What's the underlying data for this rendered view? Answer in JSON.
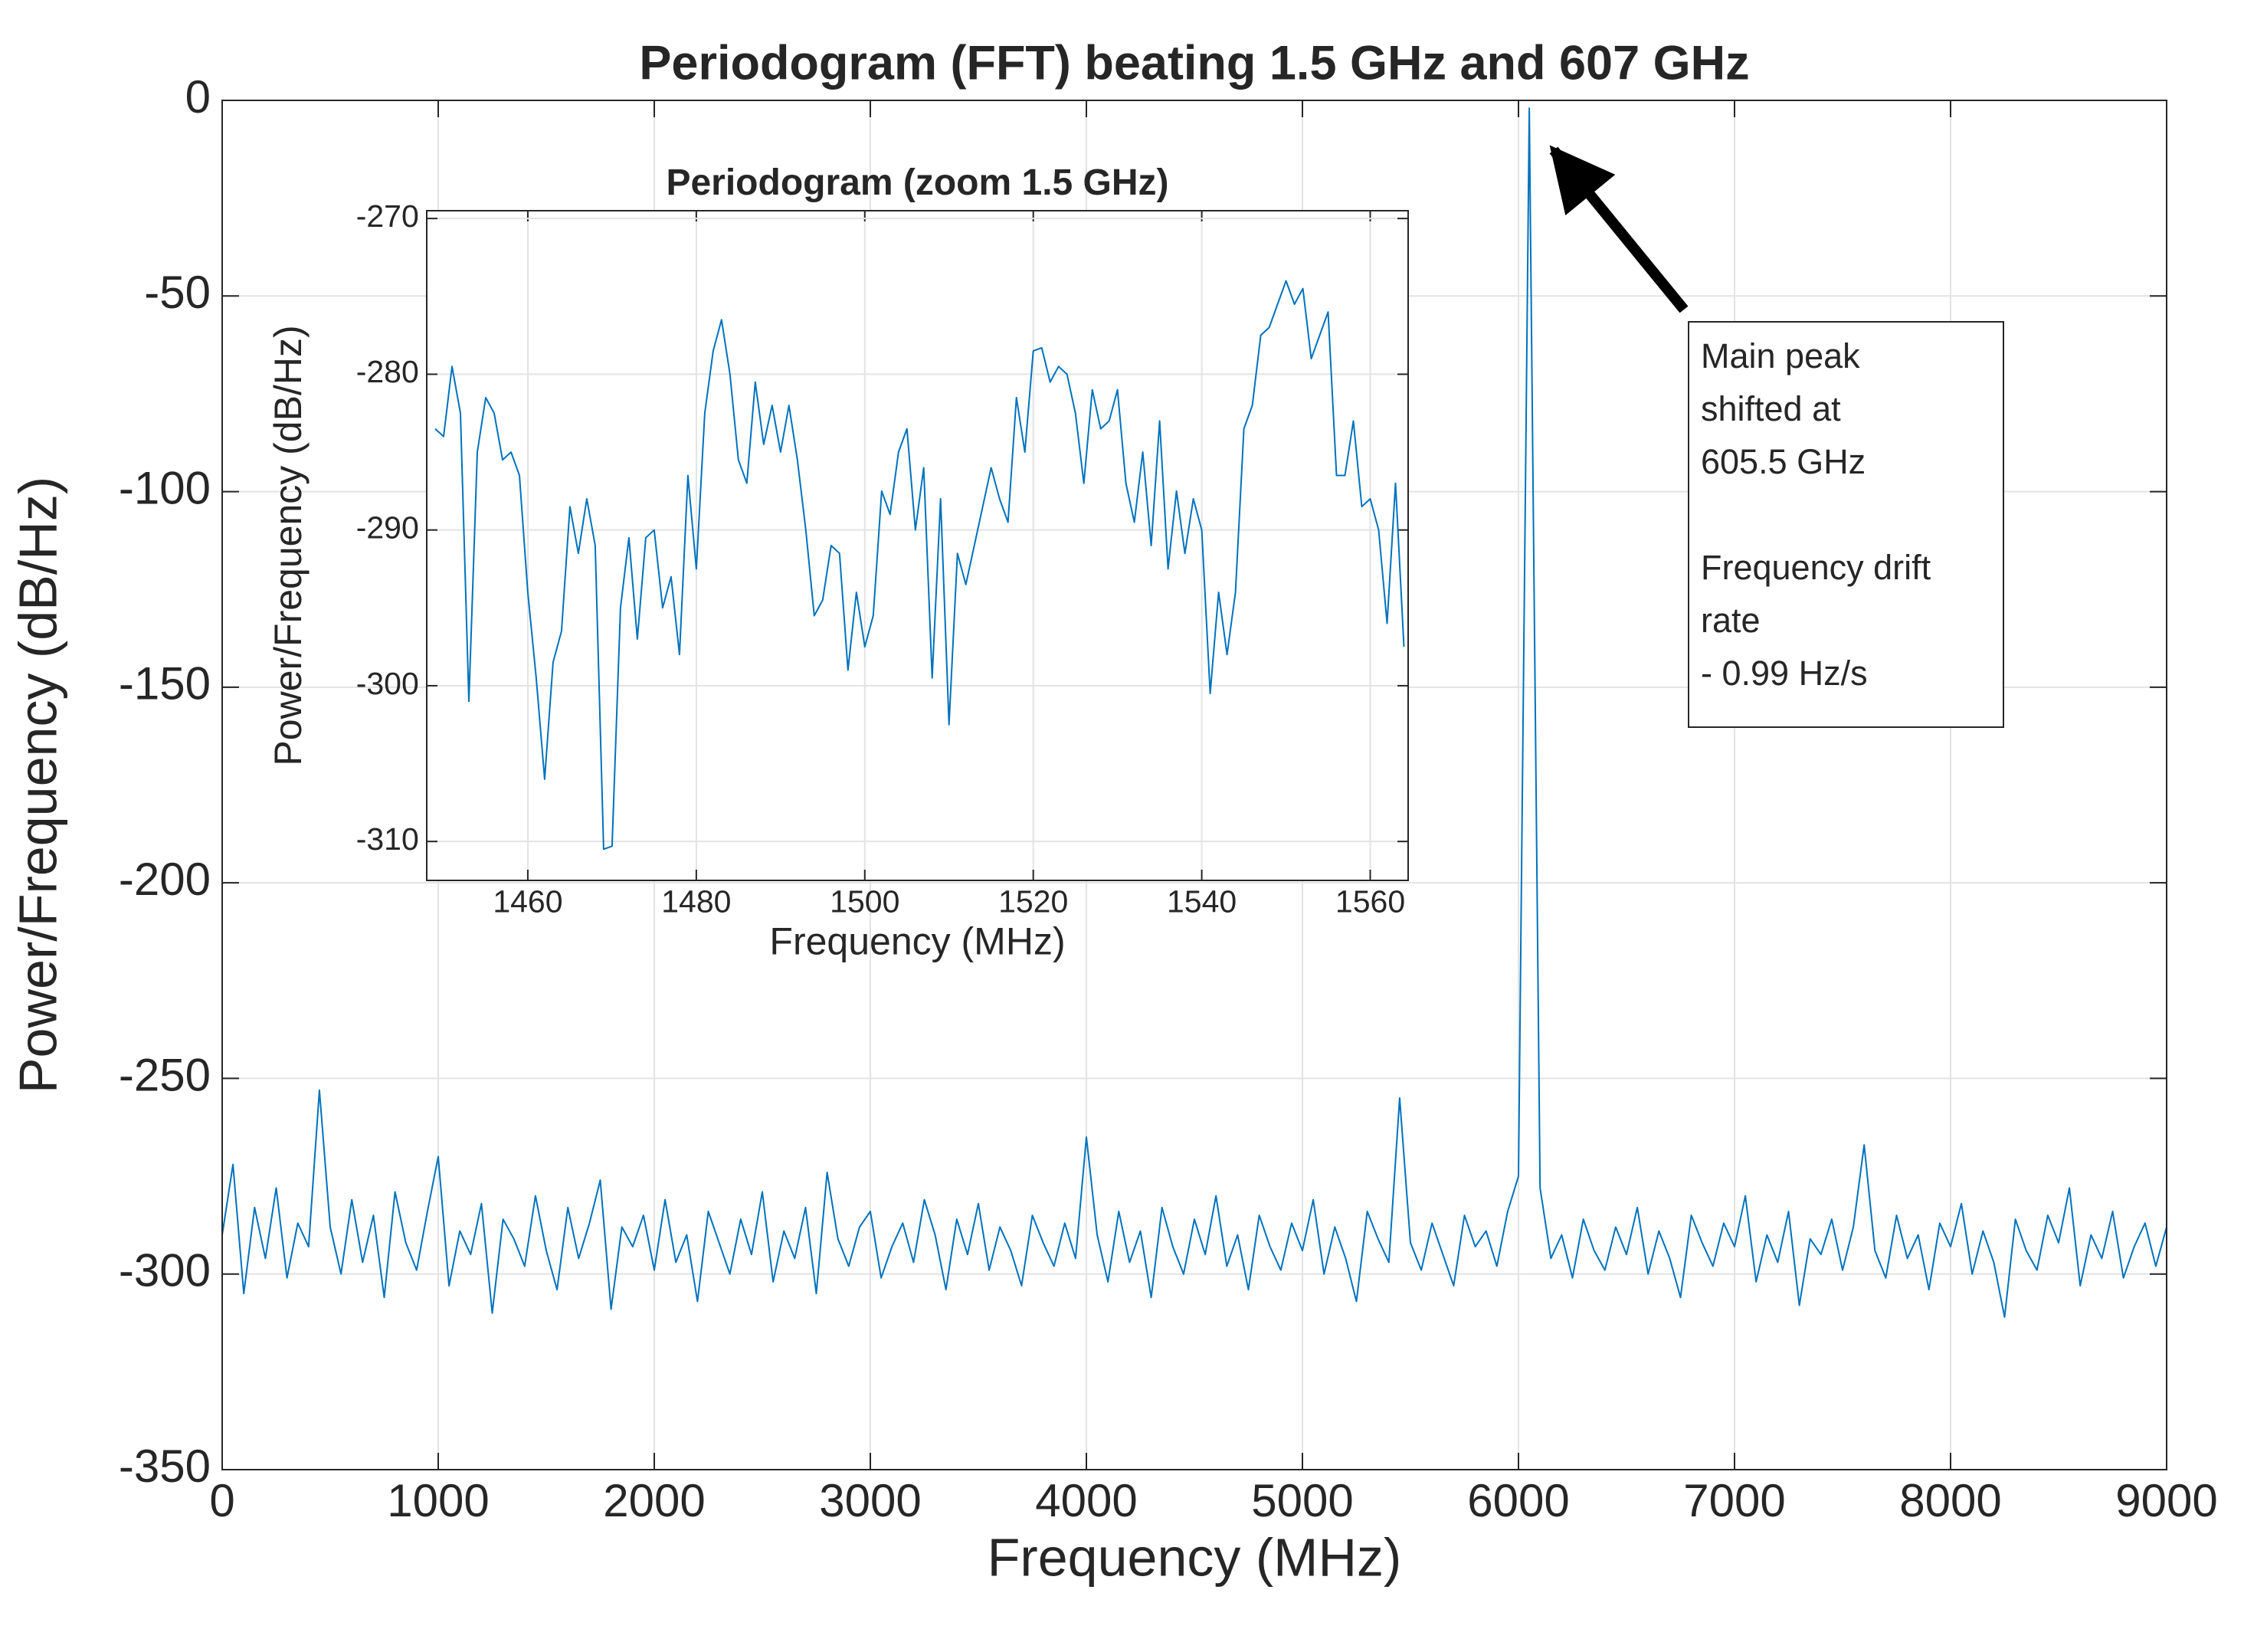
{
  "chart_data": [
    {
      "type": "line",
      "title": "Periodogram (FFT) beating 1.5 GHz and 607 GHz",
      "x_label": "Frequency (MHz)",
      "y_label": "Power/Frequency (dB/Hz)",
      "color": "#0072bd",
      "grid": true,
      "xlim": [
        0,
        9000
      ],
      "ylim": [
        -350,
        0
      ],
      "xticks": [
        0,
        1000,
        2000,
        3000,
        4000,
        5000,
        6000,
        7000,
        8000,
        9000
      ],
      "yticks": [
        -350,
        -300,
        -250,
        -200,
        -150,
        -100,
        -50,
        0
      ],
      "x": [
        0,
        50,
        100,
        150,
        200,
        250,
        300,
        350,
        400,
        450,
        500,
        550,
        600,
        650,
        700,
        750,
        800,
        850,
        900,
        950,
        1000,
        1050,
        1100,
        1150,
        1200,
        1250,
        1300,
        1350,
        1400,
        1450,
        1500,
        1550,
        1600,
        1650,
        1700,
        1750,
        1800,
        1850,
        1900,
        1950,
        2000,
        2050,
        2100,
        2150,
        2200,
        2250,
        2300,
        2350,
        2400,
        2450,
        2500,
        2550,
        2600,
        2650,
        2700,
        2750,
        2800,
        2850,
        2900,
        2950,
        3000,
        3050,
        3100,
        3150,
        3200,
        3250,
        3300,
        3350,
        3400,
        3450,
        3500,
        3550,
        3600,
        3650,
        3700,
        3750,
        3800,
        3850,
        3900,
        3950,
        4000,
        4050,
        4100,
        4150,
        4200,
        4250,
        4300,
        4350,
        4400,
        4450,
        4500,
        4550,
        4600,
        4650,
        4700,
        4750,
        4800,
        4850,
        4900,
        4950,
        5000,
        5050,
        5100,
        5150,
        5200,
        5250,
        5300,
        5350,
        5400,
        5450,
        5500,
        5550,
        5600,
        5650,
        5700,
        5750,
        5800,
        5850,
        5900,
        5950,
        6000,
        6050,
        6100,
        6150,
        6200,
        6250,
        6300,
        6350,
        6400,
        6450,
        6500,
        6550,
        6600,
        6650,
        6700,
        6750,
        6800,
        6850,
        6900,
        6950,
        7000,
        7050,
        7100,
        7150,
        7200,
        7250,
        7300,
        7350,
        7400,
        7450,
        7500,
        7550,
        7600,
        7650,
        7700,
        7750,
        7800,
        7850,
        7900,
        7950,
        8000,
        8050,
        8100,
        8150,
        8200,
        8250,
        8300,
        8350,
        8400,
        8450,
        8500,
        8550,
        8600,
        8650,
        8700,
        8750,
        8800,
        8850,
        8900,
        8950,
        9000
      ],
      "values": [
        -290,
        -272,
        -305,
        -283,
        -296,
        -278,
        -301,
        -287,
        -293,
        -253,
        -288,
        -300,
        -281,
        -297,
        -285,
        -306,
        -279,
        -292,
        -299,
        -284,
        -270,
        -303,
        -289,
        -295,
        -282,
        -310,
        -286,
        -291,
        -298,
        -280,
        -294,
        -304,
        -283,
        -296,
        -287,
        -276,
        -309,
        -288,
        -293,
        -285,
        -299,
        -281,
        -297,
        -290,
        -307,
        -284,
        -292,
        -300,
        -286,
        -295,
        -279,
        -302,
        -289,
        -296,
        -283,
        -305,
        -274,
        -291,
        -298,
        -288,
        -284,
        -301,
        -293,
        -287,
        -297,
        -281,
        -290,
        -304,
        -286,
        -295,
        -282,
        -299,
        -288,
        -294,
        -303,
        -285,
        -292,
        -298,
        -287,
        -296,
        -265,
        -290,
        -302,
        -284,
        -297,
        -289,
        -306,
        -283,
        -293,
        -300,
        -286,
        -295,
        -280,
        -298,
        -290,
        -304,
        -285,
        -293,
        -299,
        -287,
        -294,
        -281,
        -300,
        -288,
        -296,
        -307,
        -284,
        -291,
        -297,
        -255,
        -292,
        -299,
        -287,
        -295,
        -303,
        -285,
        -293,
        -289,
        -298,
        -284,
        -275,
        -2,
        -278,
        -296,
        -290,
        -301,
        -286,
        -294,
        -299,
        -288,
        -295,
        -283,
        -300,
        -289,
        -296,
        -306,
        -285,
        -292,
        -298,
        -287,
        -293,
        -280,
        -302,
        -290,
        -297,
        -284,
        -308,
        -291,
        -295,
        -286,
        -299,
        -288,
        -267,
        -294,
        -301,
        -285,
        -296,
        -290,
        -304,
        -287,
        -293,
        -282,
        -300,
        -289,
        -297,
        -311,
        -286,
        -294,
        -299,
        -285,
        -292,
        -278,
        -303,
        -290,
        -296,
        -284,
        -301,
        -293,
        -287,
        -298,
        -288
      ],
      "annotations": [
        [
          "Main peak",
          "shifted at",
          "605.5 GHz"
        ],
        [
          "Frequency drift",
          "rate",
          "- 0.99 Hz/s"
        ]
      ]
    },
    {
      "type": "line",
      "title": "Periodogram (zoom 1.5 GHz)",
      "x_label": "Frequency (MHz)",
      "y_label": "Power/Frequency (dB/Hz)",
      "color": "#0072bd",
      "grid": true,
      "xlim": [
        1448,
        1564.5
      ],
      "ylim": [
        -312.5,
        -269.5
      ],
      "xticks": [
        1460,
        1480,
        1500,
        1520,
        1540,
        1560
      ],
      "yticks": [
        -310,
        -300,
        -290,
        -280,
        -270
      ],
      "x": [
        1449,
        1450,
        1451,
        1452,
        1453,
        1454,
        1455,
        1456,
        1457,
        1458,
        1459,
        1460,
        1461,
        1462,
        1463,
        1464,
        1465,
        1466,
        1467,
        1468,
        1469,
        1470,
        1471,
        1472,
        1473,
        1474,
        1475,
        1476,
        1477,
        1478,
        1479,
        1480,
        1481,
        1482,
        1483,
        1484,
        1485,
        1486,
        1487,
        1488,
        1489,
        1490,
        1491,
        1492,
        1493,
        1494,
        1495,
        1496,
        1497,
        1498,
        1499,
        1500,
        1501,
        1502,
        1503,
        1504,
        1505,
        1506,
        1507,
        1508,
        1509,
        1510,
        1511,
        1512,
        1513,
        1514,
        1515,
        1516,
        1517,
        1518,
        1519,
        1520,
        1521,
        1522,
        1523,
        1524,
        1525,
        1526,
        1527,
        1528,
        1529,
        1530,
        1531,
        1532,
        1533,
        1534,
        1535,
        1536,
        1537,
        1538,
        1539,
        1540,
        1541,
        1542,
        1543,
        1544,
        1545,
        1546,
        1547,
        1548,
        1549,
        1550,
        1551,
        1552,
        1553,
        1554,
        1555,
        1556,
        1557,
        1558,
        1559,
        1560,
        1561,
        1562,
        1563,
        1564
      ],
      "values": [
        -283.5,
        -284,
        -279.5,
        -282.5,
        -301,
        -285,
        -281.5,
        -282.5,
        -285.5,
        -285,
        -286.5,
        -294,
        -299.5,
        -306,
        -298.5,
        -296.5,
        -288.5,
        -291.5,
        -288,
        -291,
        -310.5,
        -310.3,
        -295,
        -290.5,
        -297,
        -290.5,
        -290,
        -295,
        -293,
        -298,
        -286.5,
        -292.5,
        -282.5,
        -278.5,
        -276.5,
        -280,
        -285.5,
        -287,
        -280.5,
        -284.5,
        -282,
        -285,
        -282,
        -285.5,
        -290,
        -295.5,
        -294.5,
        -291,
        -291.5,
        -299,
        -294,
        -297.5,
        -295.5,
        -287.5,
        -289,
        -285,
        -283.5,
        -290,
        -286,
        -299.5,
        -288,
        -302.5,
        -291.5,
        -293.5,
        -291,
        -288.5,
        -286,
        -288,
        -289.5,
        -281.5,
        -285,
        -278.5,
        -278.3,
        -280.5,
        -279.5,
        -280,
        -282.5,
        -287,
        -281,
        -283.5,
        -283,
        -281,
        -287,
        -289.5,
        -285,
        -291,
        -283,
        -292.5,
        -287.5,
        -291.5,
        -288,
        -290,
        -300.5,
        -294,
        -298,
        -294,
        -283.5,
        -282,
        -277.5,
        -277,
        -275.5,
        -274,
        -275.5,
        -274.5,
        -279,
        -277.5,
        -276,
        -286.5,
        -286.5,
        -283,
        -288.5,
        -288,
        -290,
        -296,
        -287,
        -297.5
      ]
    }
  ]
}
